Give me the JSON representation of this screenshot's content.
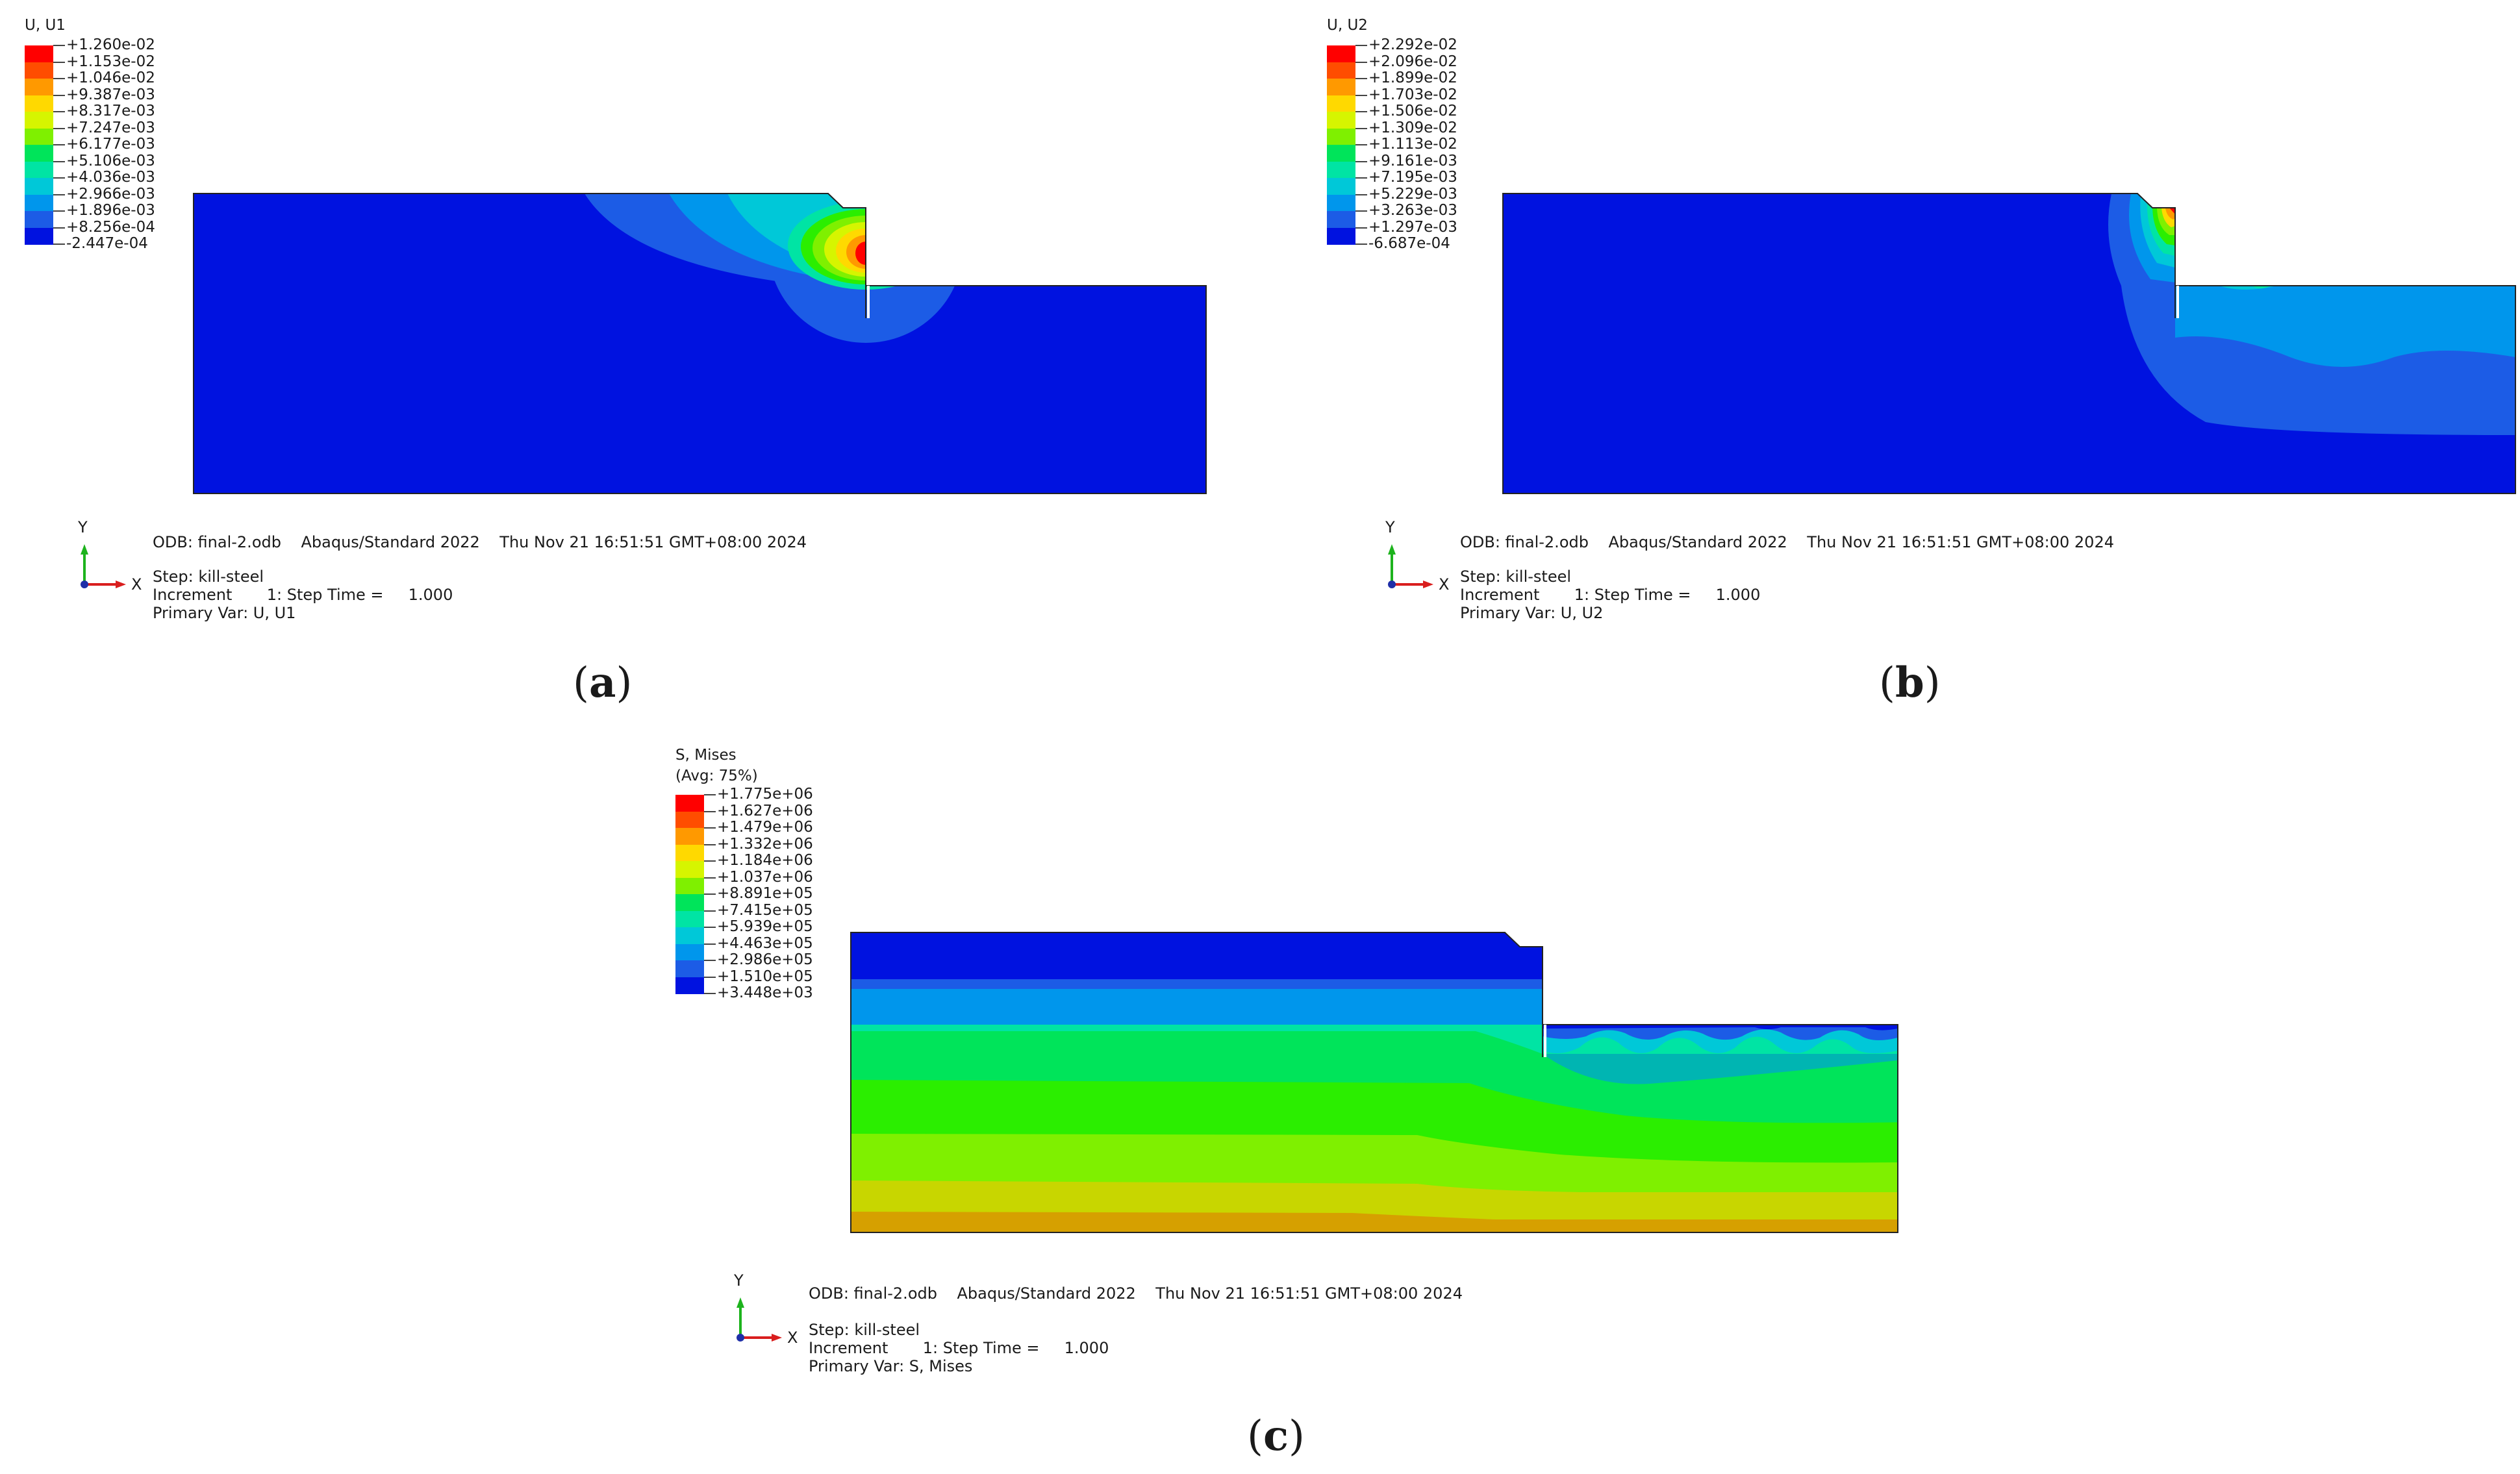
{
  "panels": [
    {
      "id": "a",
      "legend_title": [
        "U, U1"
      ],
      "legend_values": [
        "+1.260e-02",
        "+1.153e-02",
        "+1.046e-02",
        "+9.387e-03",
        "+8.317e-03",
        "+7.247e-03",
        "+6.177e-03",
        "+5.106e-03",
        "+4.036e-03",
        "+2.966e-03",
        "+1.896e-03",
        "+8.256e-04",
        "-2.447e-04"
      ],
      "odb_line": "ODB: final-2.odb    Abaqus/Standard 2022    Thu Nov 21 16:51:51 GMT+08:00 2024",
      "step_line": "Step: kill-steel",
      "increment_line": "Increment       1: Step Time =     1.000",
      "primary_var_line": "Primary Var: U, U1",
      "axis_y": "Y",
      "axis_x": "X",
      "caption": "a"
    },
    {
      "id": "b",
      "legend_title": [
        "U, U2"
      ],
      "legend_values": [
        "+2.292e-02",
        "+2.096e-02",
        "+1.899e-02",
        "+1.703e-02",
        "+1.506e-02",
        "+1.309e-02",
        "+1.113e-02",
        "+9.161e-03",
        "+7.195e-03",
        "+5.229e-03",
        "+3.263e-03",
        "+1.297e-03",
        "-6.687e-04"
      ],
      "odb_line": "ODB: final-2.odb    Abaqus/Standard 2022    Thu Nov 21 16:51:51 GMT+08:00 2024",
      "step_line": "Step: kill-steel",
      "increment_line": "Increment       1: Step Time =     1.000",
      "primary_var_line": "Primary Var: U, U2",
      "axis_y": "Y",
      "axis_x": "X",
      "caption": "b"
    },
    {
      "id": "c",
      "legend_title": [
        "S, Mises",
        "(Avg: 75%)"
      ],
      "legend_values": [
        "+1.775e+06",
        "+1.627e+06",
        "+1.479e+06",
        "+1.332e+06",
        "+1.184e+06",
        "+1.037e+06",
        "+8.891e+05",
        "+7.415e+05",
        "+5.939e+05",
        "+4.463e+05",
        "+2.986e+05",
        "+1.510e+05",
        "+3.448e+03"
      ],
      "odb_line": "ODB: final-2.odb    Abaqus/Standard 2022    Thu Nov 21 16:51:51 GMT+08:00 2024",
      "step_line": "Step: kill-steel",
      "increment_line": "Increment       1: Step Time =     1.000",
      "primary_var_line": "Primary Var: S, Mises",
      "axis_y": "Y",
      "axis_x": "X",
      "caption": "c"
    }
  ],
  "colormap": [
    "#ff0000",
    "#ff4d00",
    "#ff9900",
    "#ffd900",
    "#d6f500",
    "#7ff000",
    "#2bee00",
    "#00e45a",
    "#00e4a4",
    "#00c8d8",
    "#0096ec",
    "#1c5ce6",
    "#0012e0"
  ]
}
